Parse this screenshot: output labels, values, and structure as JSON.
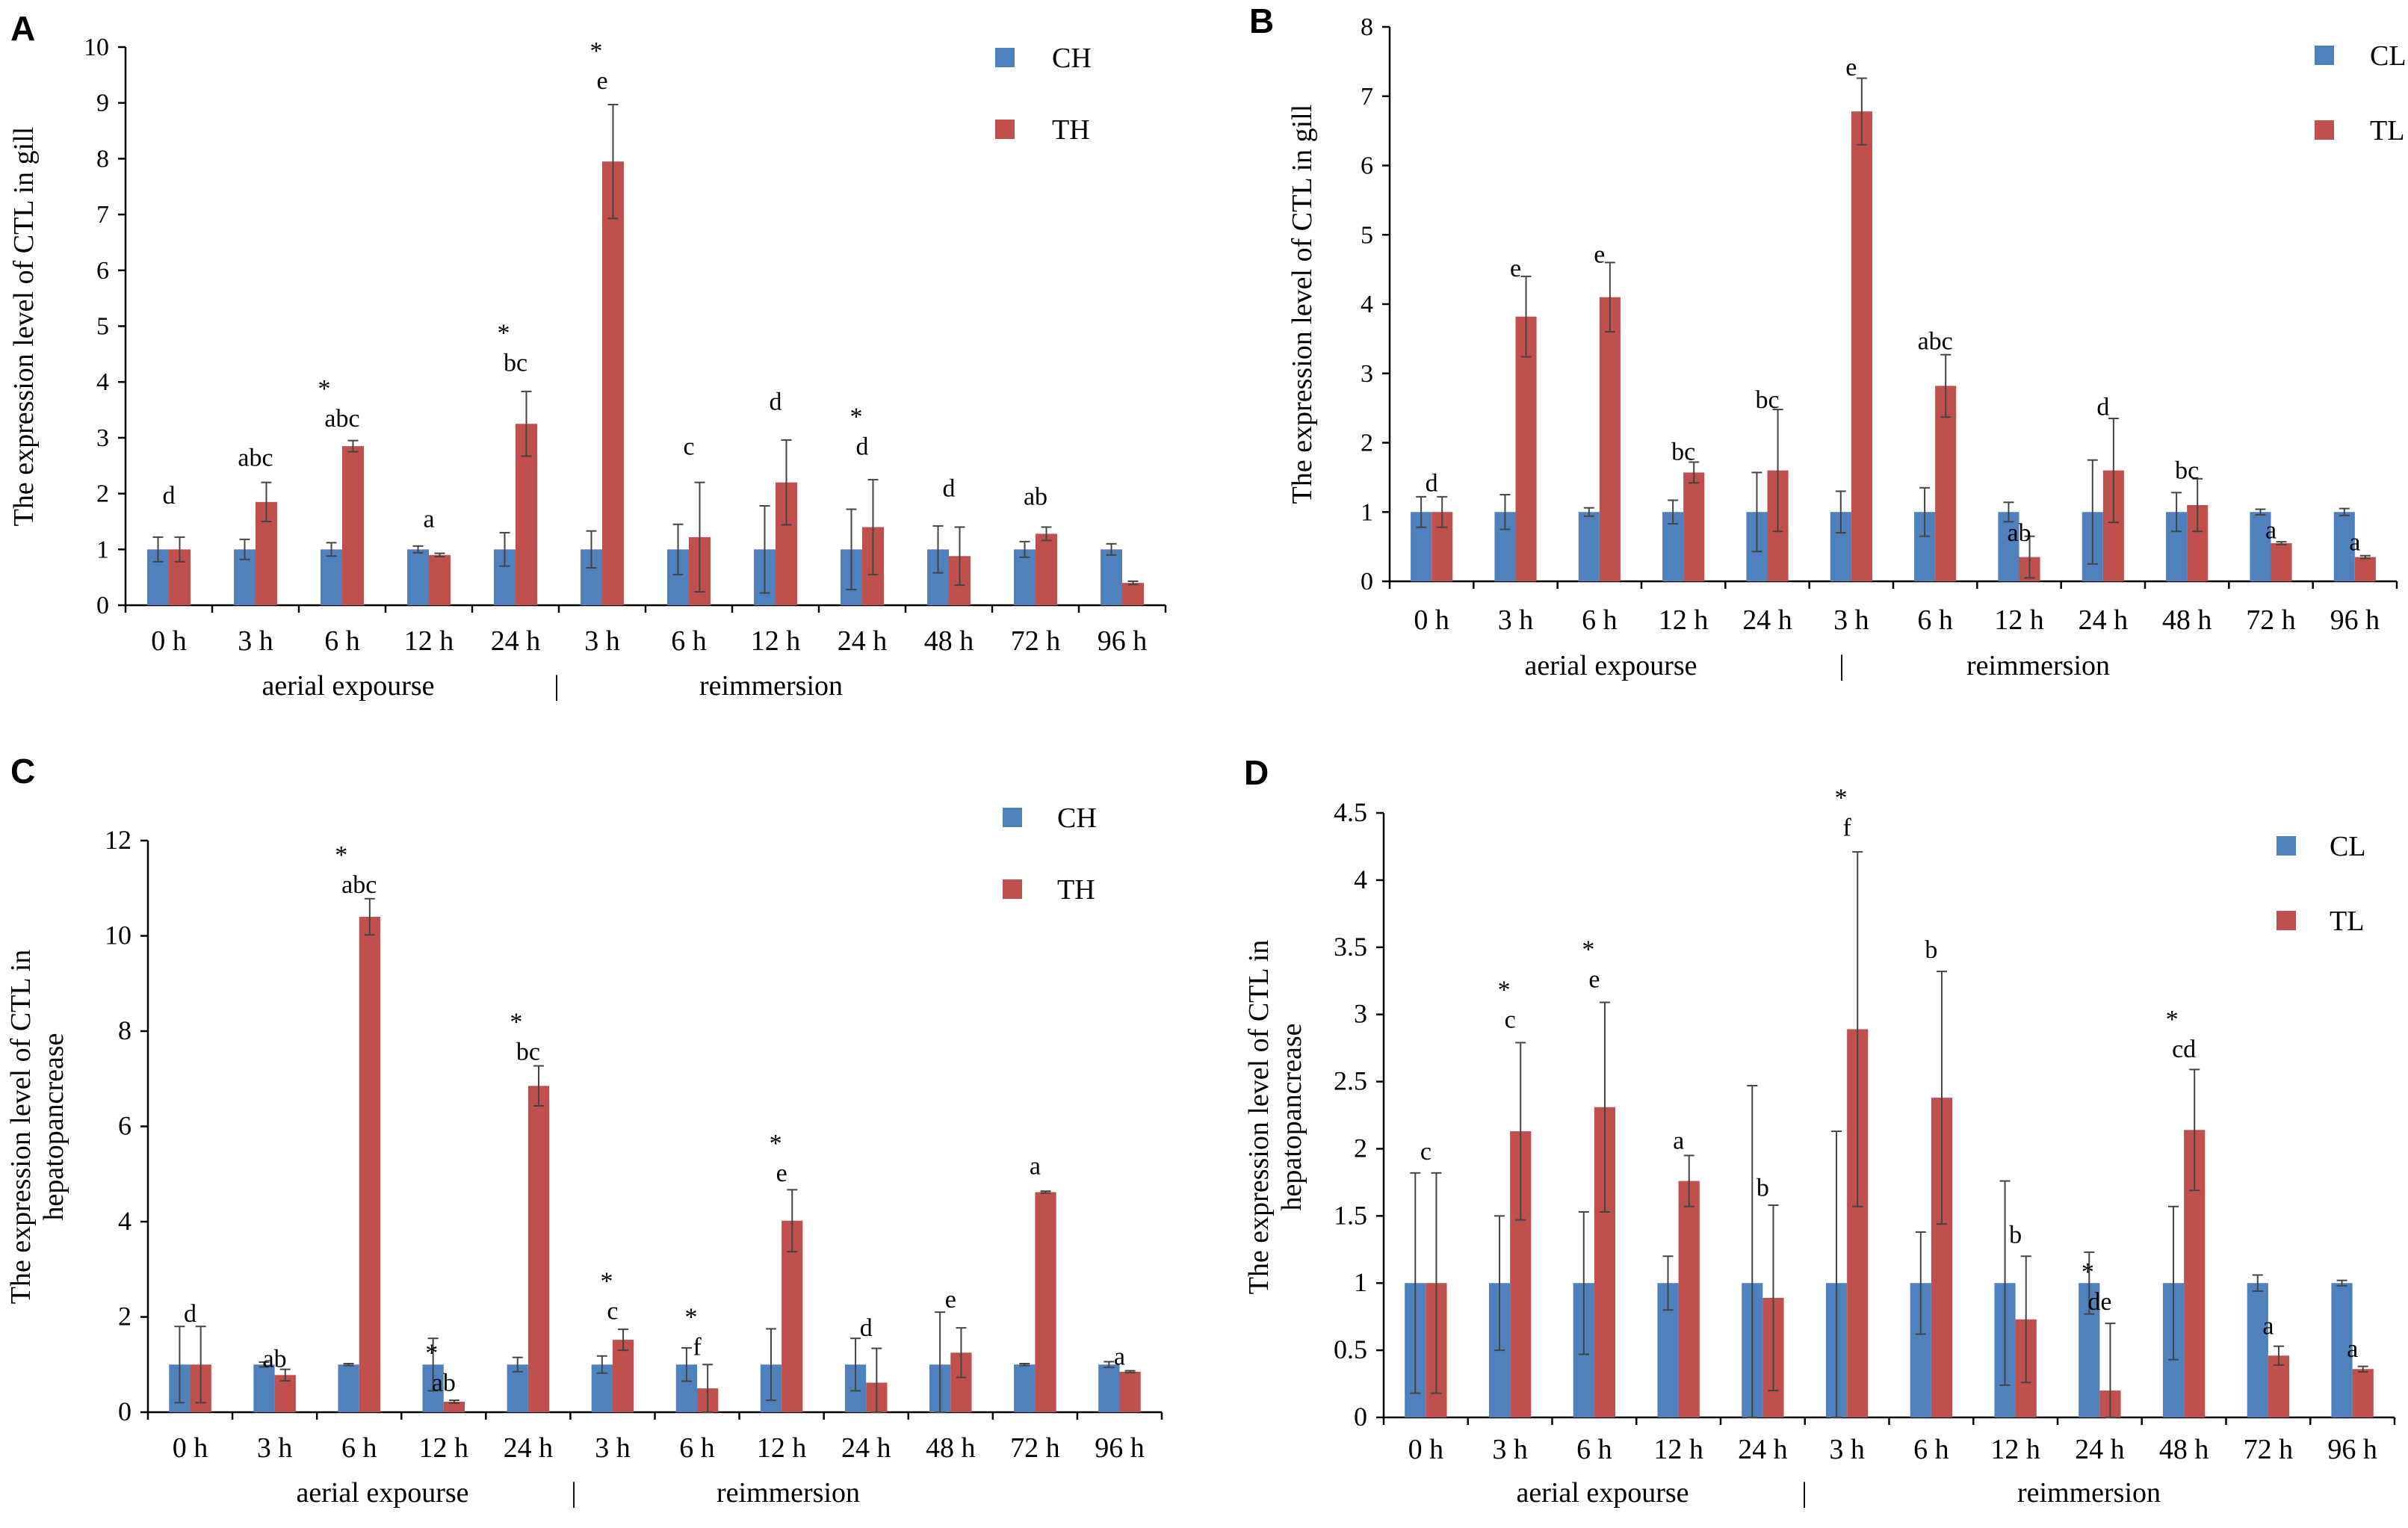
{
  "colors": {
    "control": "#4f81bd",
    "treatment": "#c0504d",
    "axis": "#000000",
    "error": "#444444"
  },
  "chart_data": [
    {
      "panel": "A",
      "type": "bar",
      "ylabel": "The expression level of CTL  in gill",
      "ylim": [
        0,
        10
      ],
      "ytick_step": 1,
      "categories": [
        "0 h",
        "3 h",
        "6 h",
        "12 h",
        "24 h",
        "3 h",
        "6 h",
        "12 h",
        "24 h",
        "48 h",
        "72 h",
        "96 h"
      ],
      "group_labels": [
        "aerial expourse",
        "reimmersion"
      ],
      "group_separator": "|",
      "series": [
        {
          "name": "CH",
          "color": "#4f81bd",
          "values": [
            1,
            1,
            1,
            1,
            1,
            1,
            1,
            1,
            1,
            1,
            1,
            1
          ],
          "errors": [
            0.22,
            0.18,
            0.12,
            0.06,
            0.3,
            0.33,
            0.45,
            0.78,
            0.72,
            0.42,
            0.14,
            0.1
          ]
        },
        {
          "name": "TH",
          "color": "#c0504d",
          "values": [
            1,
            1.85,
            2.85,
            0.9,
            3.25,
            7.95,
            1.22,
            2.2,
            1.4,
            0.88,
            1.28,
            0.4
          ],
          "errors": [
            0.22,
            0.35,
            0.1,
            0.03,
            0.58,
            1.02,
            0.98,
            0.76,
            0.85,
            0.52,
            0.12,
            0.03
          ]
        }
      ],
      "annotations": [
        {
          "cat": 0,
          "letters": "d",
          "star": false,
          "value": 1.82
        },
        {
          "cat": 1,
          "letters": "abc",
          "star": false,
          "value": 2.5
        },
        {
          "cat": 2,
          "letters": "abc",
          "star": true,
          "value": 3.2
        },
        {
          "cat": 3,
          "letters": "a",
          "star": false,
          "value": 1.4
        },
        {
          "cat": 4,
          "letters": "bc",
          "star": true,
          "value": 4.2
        },
        {
          "cat": 5,
          "letters": "e",
          "star": true,
          "value": 9.25
        },
        {
          "cat": 6,
          "letters": "c",
          "star": false,
          "value": 2.7
        },
        {
          "cat": 7,
          "letters": "d",
          "star": false,
          "value": 3.5
        },
        {
          "cat": 8,
          "letters": "d",
          "star": true,
          "value": 2.7
        },
        {
          "cat": 9,
          "letters": "d",
          "star": false,
          "value": 1.95
        },
        {
          "cat": 10,
          "letters": "ab",
          "star": false,
          "value": 1.8
        }
      ]
    },
    {
      "panel": "B",
      "type": "bar",
      "ylabel": "The expression level of CTL  in gill",
      "ylim": [
        0,
        8
      ],
      "ytick_step": 1,
      "categories": [
        "0 h",
        "3 h",
        "6 h",
        "12 h",
        "24 h",
        "3 h",
        "6 h",
        "12 h",
        "24 h",
        "48 h",
        "72 h",
        "96 h"
      ],
      "group_labels": [
        "aerial expourse",
        "reimmersion"
      ],
      "group_separator": "|",
      "series": [
        {
          "name": "CL",
          "color": "#4f81bd",
          "values": [
            1,
            1,
            1,
            1,
            1,
            1,
            1,
            1,
            1,
            1,
            1,
            1
          ],
          "errors": [
            0.22,
            0.25,
            0.06,
            0.17,
            0.57,
            0.3,
            0.35,
            0.14,
            0.75,
            0.28,
            0.04,
            0.05
          ]
        },
        {
          "name": "TL",
          "color": "#c0504d",
          "values": [
            1,
            3.82,
            4.1,
            1.57,
            1.6,
            6.78,
            2.82,
            0.35,
            1.6,
            1.1,
            0.55,
            0.35
          ]
        },
        {
          "name": "TL_err",
          "color": "#c0504d",
          "values": [
            0.22,
            0.58,
            0.5,
            0.15,
            0.88,
            0.48,
            0.45,
            0.3,
            0.75,
            0.38,
            0.02,
            0.02
          ]
        }
      ],
      "annotations": [
        {
          "cat": 0,
          "letters": "d",
          "star": false,
          "value": 1.3
        },
        {
          "cat": 1,
          "letters": "e",
          "star": false,
          "value": 4.4
        },
        {
          "cat": 2,
          "letters": "e",
          "star": false,
          "value": 4.6
        },
        {
          "cat": 3,
          "letters": "bc",
          "star": false,
          "value": 1.75
        },
        {
          "cat": 4,
          "letters": "bc",
          "star": false,
          "value": 2.5
        },
        {
          "cat": 5,
          "letters": "e",
          "star": false,
          "value": 7.3
        },
        {
          "cat": 6,
          "letters": "abc",
          "star": false,
          "value": 3.35
        },
        {
          "cat": 7,
          "letters": "ab",
          "star": false,
          "value": 0.58
        },
        {
          "cat": 8,
          "letters": "d",
          "star": false,
          "value": 2.4
        },
        {
          "cat": 9,
          "letters": "bc",
          "star": false,
          "value": 1.48
        },
        {
          "cat": 10,
          "letters": "a",
          "star": false,
          "value": 0.62
        },
        {
          "cat": 11,
          "letters": "a",
          "star": false,
          "value": 0.45
        }
      ]
    },
    {
      "panel": "C",
      "type": "bar",
      "ylabel": [
        "The expression level of CTL in",
        "hepatopancrease"
      ],
      "ylim": [
        0,
        12
      ],
      "ytick_step": 2,
      "categories": [
        "0 h",
        "3 h",
        "6 h",
        "12 h",
        "24 h",
        "3 h",
        "6 h",
        "12 h",
        "24 h",
        "48 h",
        "72 h",
        "96 h"
      ],
      "group_labels": [
        "aerial expourse",
        "reimmersion"
      ],
      "group_separator": "|",
      "series": [
        {
          "name": "CH",
          "color": "#4f81bd",
          "values": [
            1,
            1,
            1,
            1,
            1,
            1,
            1,
            1,
            1,
            1,
            1,
            1
          ],
          "errors": [
            0.8,
            0.05,
            0.02,
            0.55,
            0.15,
            0.18,
            0.35,
            0.75,
            0.55,
            1.1,
            0.02,
            0.06
          ]
        },
        {
          "name": "TH",
          "color": "#c0504d",
          "values": [
            1,
            0.78,
            10.4,
            0.22,
            6.85,
            1.52,
            0.5,
            4.02,
            0.62,
            1.25,
            4.62,
            0.85
          ]
        },
        {
          "name": "TH_err",
          "color": "#c0504d",
          "values": [
            0.8,
            0.12,
            0.38,
            0.03,
            0.42,
            0.22,
            0.5,
            0.65,
            0.72,
            0.52,
            0.02,
            0.02
          ]
        }
      ],
      "annotations": [
        {
          "cat": 0,
          "letters": "d",
          "star": false,
          "value": 1.9
        },
        {
          "cat": 1,
          "letters": "ab",
          "star": false,
          "value": 0.95
        },
        {
          "cat": 2,
          "letters": "abc",
          "star": true,
          "value": 10.9
        },
        {
          "cat": 3,
          "letters": "ab",
          "star": true,
          "value": 0.45
        },
        {
          "cat": 4,
          "letters": "bc",
          "star": true,
          "value": 7.4
        },
        {
          "cat": 5,
          "letters": "c",
          "star": true,
          "value": 1.95
        },
        {
          "cat": 6,
          "letters": "f",
          "star": true,
          "value": 1.2
        },
        {
          "cat": 7,
          "letters": "e",
          "star": true,
          "value": 4.85
        },
        {
          "cat": 8,
          "letters": "d",
          "star": false,
          "value": 1.6
        },
        {
          "cat": 9,
          "letters": "e",
          "star": false,
          "value": 2.2
        },
        {
          "cat": 10,
          "letters": "a",
          "star": false,
          "value": 5.0
        },
        {
          "cat": 11,
          "letters": "a",
          "star": false,
          "value": 1.0
        }
      ]
    },
    {
      "panel": "D",
      "type": "bar",
      "ylabel": [
        "The expression level of CTL in",
        "hepatopancrease"
      ],
      "ylim": [
        0,
        4.5
      ],
      "ytick_step": 0.5,
      "categories": [
        "0 h",
        "3 h",
        "6 h",
        "12 h",
        "24 h",
        "3 h",
        "6 h",
        "12 h",
        "24 h",
        "48 h",
        "72 h",
        "96 h"
      ],
      "group_labels": [
        "aerial expourse",
        "reimmersion"
      ],
      "group_separator": "|",
      "series": [
        {
          "name": "CL",
          "color": "#4f81bd",
          "values": [
            1,
            1,
            1,
            1,
            1,
            1,
            1,
            1,
            1,
            1,
            1,
            1
          ],
          "errors": [
            0.82,
            0.5,
            0.53,
            0.2,
            1.47,
            1.13,
            0.38,
            0.76,
            0.23,
            0.57,
            0.06,
            0.02
          ]
        },
        {
          "name": "TL",
          "color": "#c0504d",
          "values": [
            1,
            2.13,
            2.31,
            1.76,
            0.89,
            2.89,
            2.38,
            0.73,
            0.2,
            2.14,
            0.46,
            0.36
          ]
        },
        {
          "name": "TL_err",
          "color": "#c0504d",
          "values": [
            0.82,
            0.66,
            0.78,
            0.19,
            0.69,
            1.32,
            0.94,
            0.47,
            0.5,
            0.45,
            0.07,
            0.02
          ]
        }
      ],
      "annotations": [
        {
          "cat": 0,
          "letters": "c",
          "star": false,
          "value": 1.92
        },
        {
          "cat": 1,
          "letters": "c",
          "star": true,
          "value": 2.9
        },
        {
          "cat": 2,
          "letters": "e",
          "star": true,
          "value": 3.2
        },
        {
          "cat": 3,
          "letters": "a",
          "star": false,
          "value": 2.0
        },
        {
          "cat": 4,
          "letters": "b",
          "star": false,
          "value": 1.65
        },
        {
          "cat": 5,
          "letters": "f",
          "star": true,
          "value": 4.33
        },
        {
          "cat": 6,
          "letters": "b",
          "star": false,
          "value": 3.42
        },
        {
          "cat": 7,
          "letters": "b",
          "star": false,
          "value": 1.3
        },
        {
          "cat": 8,
          "letters": "de",
          "star": true,
          "value": 0.8
        },
        {
          "cat": 9,
          "letters": "cd",
          "star": true,
          "value": 2.68
        },
        {
          "cat": 10,
          "letters": "a",
          "star": false,
          "value": 0.62
        },
        {
          "cat": 11,
          "letters": "a",
          "star": false,
          "value": 0.45
        }
      ]
    }
  ]
}
